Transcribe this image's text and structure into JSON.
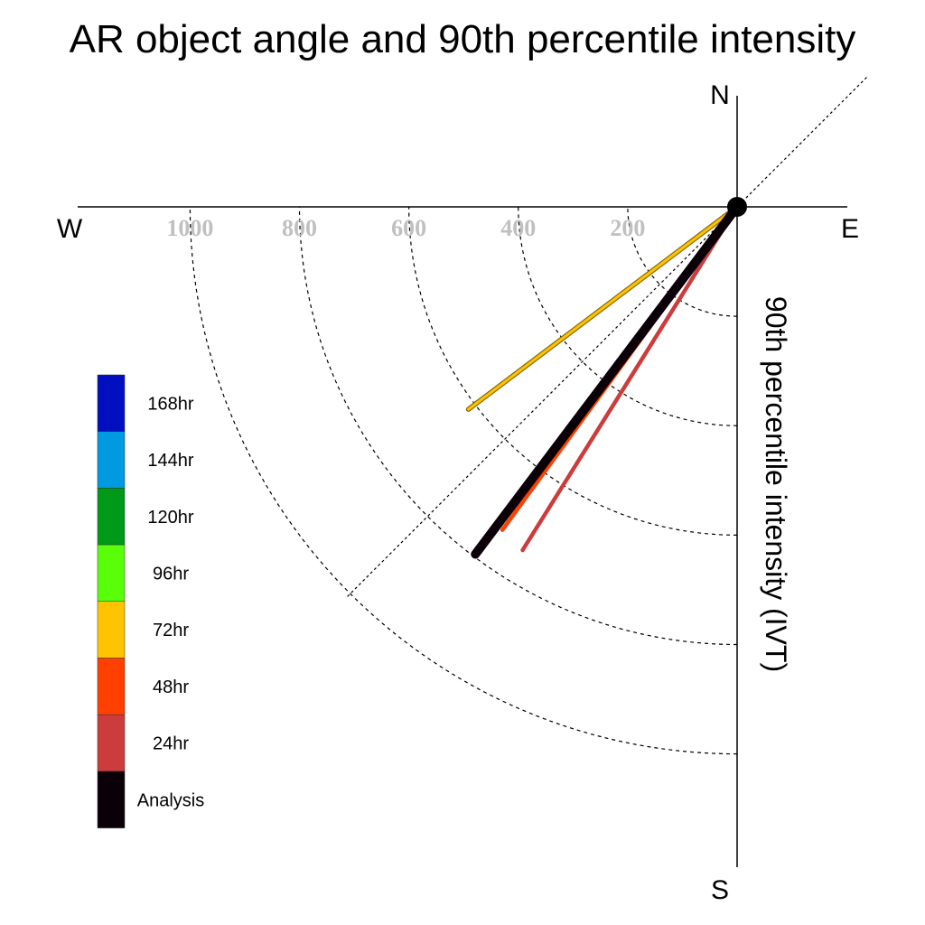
{
  "chart_data": {
    "type": "polar-line",
    "title": "AR object angle and 90th percentile intensity",
    "radial_label": "90th percentile intensity (IVT)",
    "radial_ticks": [
      200,
      400,
      600,
      800,
      1000
    ],
    "radial_max": 1200,
    "compass": {
      "north": "N",
      "south": "S",
      "west": "W",
      "east": "E"
    },
    "grid": true,
    "legend_position": "left",
    "legend": [
      {
        "label": "168hr",
        "color": "#0010c0"
      },
      {
        "label": "144hr",
        "color": "#009ae0"
      },
      {
        "label": "120hr",
        "color": "#009a18"
      },
      {
        "label": "96hr",
        "color": "#58ff08"
      },
      {
        "label": "72hr",
        "color": "#ffc400"
      },
      {
        "label": "48hr",
        "color": "#ff4000"
      },
      {
        "label": "24hr",
        "color": "#cc3c3c"
      },
      {
        "label": "Analysis",
        "color": "#0c0008"
      }
    ],
    "series": [
      {
        "name": "72hr",
        "angle_deg": 233,
        "intensity": 615,
        "color": "#ffc400"
      },
      {
        "name": "48hr",
        "angle_deg": 216,
        "intensity": 730,
        "color": "#ff4000"
      },
      {
        "name": "24hr",
        "angle_deg": 212,
        "intensity": 740,
        "color": "#cc3c3c"
      },
      {
        "name": "Analysis",
        "angle_deg": 217,
        "intensity": 795,
        "color": "#0c0008"
      }
    ]
  }
}
